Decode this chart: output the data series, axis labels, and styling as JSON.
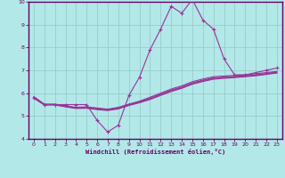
{
  "xlabel": "Windchill (Refroidissement éolien,°C)",
  "x_data": [
    0,
    1,
    2,
    3,
    4,
    5,
    6,
    7,
    8,
    9,
    10,
    11,
    12,
    13,
    14,
    15,
    16,
    17,
    18,
    19,
    20,
    21,
    22,
    23
  ],
  "main_line": [
    5.8,
    5.5,
    5.5,
    5.5,
    5.5,
    5.5,
    4.8,
    4.3,
    4.6,
    5.9,
    6.7,
    7.9,
    8.8,
    9.8,
    9.5,
    10.1,
    9.2,
    8.8,
    7.5,
    6.8,
    6.8,
    6.9,
    7.0,
    7.1
  ],
  "line2": [
    5.85,
    5.52,
    5.52,
    5.45,
    5.38,
    5.4,
    5.35,
    5.3,
    5.38,
    5.52,
    5.65,
    5.82,
    6.0,
    6.18,
    6.32,
    6.5,
    6.62,
    6.72,
    6.75,
    6.78,
    6.8,
    6.85,
    6.9,
    6.95
  ],
  "line3": [
    5.82,
    5.5,
    5.5,
    5.43,
    5.36,
    5.37,
    5.32,
    5.28,
    5.35,
    5.5,
    5.62,
    5.78,
    5.96,
    6.13,
    6.27,
    6.45,
    6.57,
    6.67,
    6.7,
    6.73,
    6.76,
    6.8,
    6.86,
    6.92
  ],
  "line4": [
    5.8,
    5.5,
    5.5,
    5.42,
    5.35,
    5.36,
    5.3,
    5.26,
    5.33,
    5.48,
    5.6,
    5.75,
    5.93,
    6.1,
    6.24,
    6.42,
    6.54,
    6.64,
    6.68,
    6.71,
    6.74,
    6.78,
    6.84,
    6.9
  ],
  "line5": [
    5.78,
    5.48,
    5.48,
    5.4,
    5.33,
    5.34,
    5.28,
    5.24,
    5.31,
    5.46,
    5.58,
    5.72,
    5.9,
    6.07,
    6.21,
    6.39,
    6.51,
    6.61,
    6.65,
    6.68,
    6.72,
    6.76,
    6.82,
    6.88
  ],
  "bg_color": "#b3e8e8",
  "grid_color": "#99cccc",
  "spine_color": "#660066",
  "line_color": "#993399",
  "ylim": [
    4,
    10
  ],
  "xlim": [
    -0.5,
    23.5
  ],
  "yticks": [
    4,
    5,
    6,
    7,
    8,
    9,
    10
  ],
  "xticks": [
    0,
    1,
    2,
    3,
    4,
    5,
    6,
    7,
    8,
    9,
    10,
    11,
    12,
    13,
    14,
    15,
    16,
    17,
    18,
    19,
    20,
    21,
    22,
    23
  ]
}
